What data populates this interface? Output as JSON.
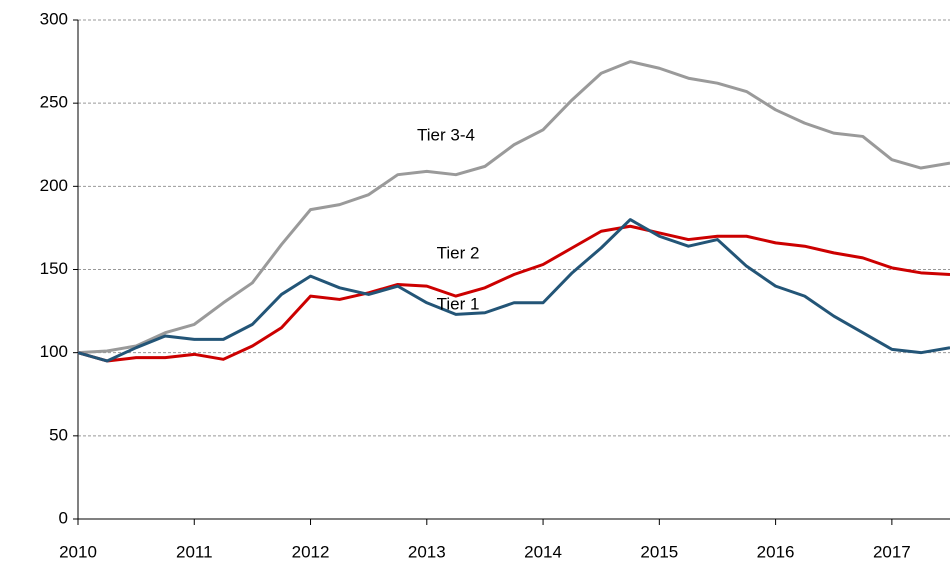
{
  "chart_data": {
    "type": "line",
    "x": [
      2010,
      2010.25,
      2010.5,
      2010.75,
      2011,
      2011.25,
      2011.5,
      2011.75,
      2012,
      2012.25,
      2012.5,
      2012.75,
      2013,
      2013.25,
      2013.5,
      2013.75,
      2014,
      2014.25,
      2014.5,
      2014.75,
      2015,
      2015.25,
      2015.5,
      2015.75,
      2016,
      2016.25,
      2016.5,
      2016.75,
      2017,
      2017.25,
      2017.5
    ],
    "series": [
      {
        "name": "Tier 3-4",
        "color": "#9a9a9a",
        "values": [
          100,
          101,
          104,
          112,
          117,
          130,
          142,
          165,
          186,
          189,
          195,
          207,
          209,
          207,
          212,
          225,
          234,
          252,
          268,
          275,
          271,
          265,
          262,
          257,
          246,
          238,
          232,
          230,
          216,
          211,
          214
        ]
      },
      {
        "name": "Tier 2",
        "color": "#cc0000",
        "values": [
          100,
          95,
          97,
          97,
          99,
          96,
          104,
          115,
          134,
          132,
          136,
          141,
          140,
          134,
          139,
          147,
          153,
          163,
          173,
          176,
          172,
          168,
          170,
          170,
          166,
          164,
          160,
          157,
          151,
          148,
          147
        ]
      },
      {
        "name": "Tier 1",
        "color": "#235577",
        "values": [
          100,
          95,
          103,
          110,
          108,
          108,
          117,
          135,
          146,
          139,
          135,
          140,
          130,
          123,
          124,
          130,
          130,
          148,
          163,
          180,
          170,
          164,
          168,
          152,
          140,
          134,
          122,
          112,
          102,
          100,
          103
        ]
      }
    ],
    "xlim": [
      2010,
      2017.5
    ],
    "xticks": [
      2010,
      2011,
      2012,
      2013,
      2014,
      2015,
      2016,
      2017
    ],
    "ylim": [
      0,
      300
    ],
    "yticks": [
      0,
      50,
      100,
      150,
      200,
      250,
      300
    ],
    "grid": true
  }
}
